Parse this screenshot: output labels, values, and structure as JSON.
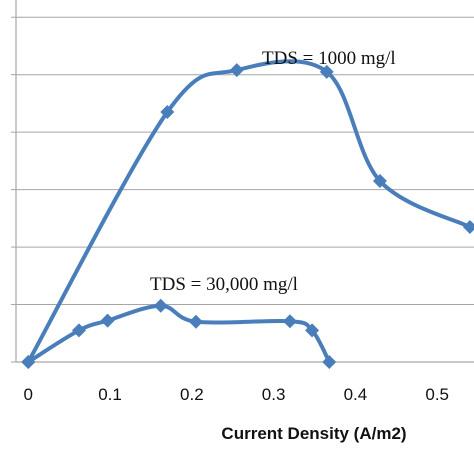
{
  "chart_data": {
    "type": "scatter",
    "title": "",
    "xlabel": "Current Density (A/m2)",
    "ylabel": "",
    "xlim": [
      -0.015,
      0.545
    ],
    "ylim": [
      0,
      6.3
    ],
    "x_ticks": [
      "0",
      "0.1",
      "0.2",
      "0.3",
      "0.4",
      "0.5"
    ],
    "x_tick_values": [
      0,
      0.1,
      0.2,
      0.3,
      0.4,
      0.5
    ],
    "y_gridlines": [
      1,
      2,
      3,
      4,
      5,
      6
    ],
    "grid": "horizontal",
    "line_color": "#4a7ebb",
    "marker": "diamond",
    "series": [
      {
        "annotation": "TDS = 1000 mg/l",
        "x": [
          0,
          0.17,
          0.255,
          0.365,
          0.43,
          0.54
        ],
        "y": [
          0,
          4.35,
          5.08,
          5.05,
          3.15,
          2.35
        ]
      },
      {
        "annotation": "TDS = 30,000 mg/l",
        "x": [
          0,
          0.062,
          0.097,
          0.162,
          0.205,
          0.32,
          0.347,
          0.368
        ],
        "y": [
          0,
          0.55,
          0.72,
          0.98,
          0.7,
          0.71,
          0.55,
          0
        ]
      }
    ]
  }
}
